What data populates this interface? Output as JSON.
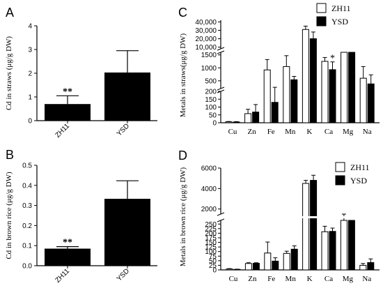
{
  "panels": {
    "A": {
      "letter": "A"
    },
    "B": {
      "letter": "B"
    },
    "C": {
      "letter": "C"
    },
    "D": {
      "letter": "D"
    }
  },
  "legend": {
    "series": [
      "ZH11",
      "YSD"
    ]
  },
  "colors": {
    "zh11_fill": "#ffffff",
    "ysd_fill": "#000000",
    "stroke": "#000000"
  },
  "chart_data": [
    {
      "panel": "A",
      "type": "bar",
      "categories": [
        "ZH11",
        "YSD"
      ],
      "values": [
        0.7,
        2.03
      ],
      "errors": [
        0.35,
        0.92
      ],
      "annotations": [
        "**",
        ""
      ],
      "ylabel": "Cd in straws (μg/g DW)",
      "ylim": [
        0,
        4
      ],
      "yticks": [
        "0",
        "1",
        "2",
        "3",
        "4"
      ]
    },
    {
      "panel": "B",
      "type": "bar",
      "categories": [
        "ZH11",
        "YSD"
      ],
      "values": [
        0.085,
        0.333
      ],
      "errors": [
        0.01,
        0.09
      ],
      "annotations": [
        "**",
        ""
      ],
      "ylabel": "Cd in brown rice (μg/g DW)",
      "ylim": [
        0,
        0.5
      ],
      "yticks": [
        "0.0",
        "0.1",
        "0.2",
        "0.3",
        "0.4",
        "0.5"
      ]
    },
    {
      "panel": "C",
      "type": "bar",
      "categories": [
        "Cu",
        "Zn",
        "Fe",
        "Mn",
        "K",
        "Ca",
        "Mg",
        "Na"
      ],
      "series": [
        {
          "name": "ZH11",
          "values": [
            6,
            58,
            920,
            1050,
            31000,
            1250,
            4500,
            600
          ],
          "errors": [
            2,
            28,
            400,
            420,
            4000,
            150,
            150,
            450
          ]
        },
        {
          "name": "YSD",
          "values": [
            5,
            68,
            130,
            540,
            20000,
            930,
            4500,
            380
          ],
          "errors": [
            2,
            48,
            120,
            130,
            8000,
            300,
            150,
            350
          ]
        }
      ],
      "annotations": [
        {
          "category": "Ca",
          "series": "YSD",
          "text": "*"
        }
      ],
      "ylabel": "Metals in straws(μg/g DW)",
      "broken_axis": true,
      "segments": [
        {
          "range": [
            0,
            200
          ],
          "ticks": [
            "0",
            "50",
            "100",
            "150",
            "200"
          ]
        },
        {
          "range": [
            200,
            1600
          ],
          "ticks": [
            "500",
            "1000",
            "1500"
          ]
        },
        {
          "range": [
            8000,
            42000
          ],
          "ticks": [
            "10,000",
            "20,000",
            "30,000",
            "40,000"
          ]
        }
      ]
    },
    {
      "panel": "D",
      "type": "bar",
      "categories": [
        "Cu",
        "Zn",
        "Fe",
        "Mn",
        "K",
        "Ca",
        "Mg",
        "Na"
      ],
      "series": [
        {
          "name": "ZH11",
          "values": [
            5,
            35,
            92,
            90,
            4500,
            208,
            1400,
            25
          ],
          "errors": [
            2,
            4,
            60,
            12,
            300,
            30,
            100,
            10
          ]
        },
        {
          "name": "YSD",
          "values": [
            3,
            36,
            48,
            113,
            4800,
            210,
            1300,
            40
          ],
          "errors": [
            1,
            3,
            18,
            18,
            500,
            18,
            120,
            20
          ]
        }
      ],
      "ylabel": "Metals in brown rice (μg/g DW)",
      "broken_axis": true,
      "segments": [
        {
          "range": [
            0,
            270
          ],
          "ticks": [
            "0",
            "25",
            "50",
            "75",
            "100",
            "125",
            "150",
            "175",
            "200",
            "225",
            "250"
          ]
        },
        {
          "range": [
            1500,
            6000
          ],
          "ticks": [
            "2000",
            "4000",
            "6000"
          ]
        }
      ]
    }
  ]
}
